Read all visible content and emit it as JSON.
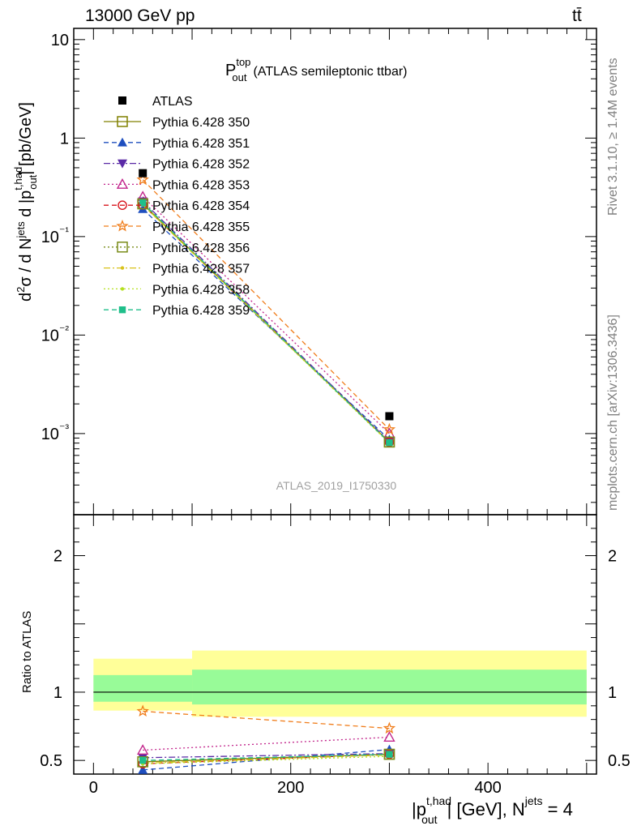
{
  "header": {
    "left": "13000 GeV pp",
    "right": "tt̄"
  },
  "side_labels": {
    "rivet": "Rivet 3.1.10, ≥ 1.4M events",
    "mcplots": "mcplots.cern.ch [arXiv:1306.3436]"
  },
  "chart_data": [
    {
      "type": "line",
      "panel": "main",
      "title_main": "P",
      "title_sup": "top",
      "title_sub": "out",
      "title_rest": "(ATLAS semileptonic ttbar)",
      "watermark": "ATLAS_2019_I1750330",
      "y_axis_label": "d²σ / d N^jets d |p_out^t,had| [pb/GeV]",
      "yscale": "log",
      "ylim": [
        0.00015,
        13
      ],
      "xlim": [
        -20,
        510
      ],
      "y_ticks": [
        "10⁻³",
        "10⁻²",
        "10⁻¹",
        "1",
        "10"
      ],
      "x": [
        50,
        300
      ],
      "data": {
        "name": "ATLAS",
        "x": [
          50,
          300
        ],
        "y": [
          0.44,
          0.0015
        ],
        "color": "#000000"
      },
      "series": [
        {
          "name": "Pythia 6.428 350",
          "color": "#808000",
          "dash": "solid",
          "marker": "square-open",
          "values": [
            0.215,
            0.00082
          ]
        },
        {
          "name": "Pythia 6.428 351",
          "color": "#1f4fbf",
          "dash": "dashed",
          "marker": "triangle-up",
          "values": [
            0.19,
            0.00087
          ]
        },
        {
          "name": "Pythia 6.428 352",
          "color": "#5a2aa6",
          "dash": "dashdot",
          "marker": "triangle-down",
          "values": [
            0.228,
            0.00083
          ]
        },
        {
          "name": "Pythia 6.428 353",
          "color": "#c2268c",
          "dash": "dotted",
          "marker": "triangle-open",
          "values": [
            0.254,
            0.001
          ]
        },
        {
          "name": "Pythia 6.428 354",
          "color": "#d8141c",
          "dash": "dashed",
          "marker": "circle-open",
          "values": [
            0.21,
            0.00082
          ]
        },
        {
          "name": "Pythia 6.428 355",
          "color": "#f07d1b",
          "dash": "dashed",
          "marker": "star-open",
          "values": [
            0.378,
            0.0011
          ]
        },
        {
          "name": "Pythia 6.428 356",
          "color": "#7a8c1a",
          "dash": "dotted",
          "marker": "square-open",
          "values": [
            0.215,
            0.00082
          ]
        },
        {
          "name": "Pythia 6.428 357",
          "color": "#d8c21a",
          "dash": "dashdot",
          "marker": "dot",
          "values": [
            0.21,
            0.00081
          ]
        },
        {
          "name": "Pythia 6.428 358",
          "color": "#b4e01e",
          "dash": "dotted",
          "marker": "dot",
          "values": [
            0.21,
            0.0008
          ]
        },
        {
          "name": "Pythia 6.428 359",
          "color": "#1fbf8a",
          "dash": "dashed",
          "marker": "square-filled",
          "values": [
            0.22,
            0.00081
          ]
        }
      ]
    },
    {
      "type": "line",
      "panel": "ratio",
      "ylabel": "Ratio to ATLAS",
      "xlabel_main": "|p",
      "xlabel_sup": "t,had",
      "xlabel_sub": "out",
      "xlabel_rest": "| [GeV], N",
      "xlabel_sup2": "jets",
      "xlabel_end": " = 4",
      "ylim": [
        0.4,
        2.3
      ],
      "xlim": [
        -20,
        510
      ],
      "y_ticks": [
        0.5,
        1,
        2
      ],
      "y_tick_labels": [
        "0.5",
        "1",
        "2"
      ],
      "x_ticks": [
        0,
        200,
        400
      ],
      "x_tick_labels": [
        "0",
        "200",
        "400"
      ],
      "uncertainty_bins": [
        {
          "x0": 0,
          "x1": 100,
          "yellow": [
            0.865,
            1.245
          ],
          "green": [
            0.93,
            1.125
          ]
        },
        {
          "x0": 100,
          "x1": 500,
          "yellow": [
            0.82,
            1.305
          ],
          "green": [
            0.91,
            1.165
          ]
        }
      ],
      "x": [
        50,
        300
      ],
      "series": [
        {
          "name": "Pythia 6.428 350",
          "values": [
            0.49,
            0.545
          ]
        },
        {
          "name": "Pythia 6.428 351",
          "values": [
            0.43,
            0.58
          ]
        },
        {
          "name": "Pythia 6.428 352",
          "values": [
            0.52,
            0.55
          ]
        },
        {
          "name": "Pythia 6.428 353",
          "values": [
            0.575,
            0.67
          ]
        },
        {
          "name": "Pythia 6.428 354",
          "values": [
            0.475,
            0.545
          ]
        },
        {
          "name": "Pythia 6.428 355",
          "values": [
            0.86,
            0.735
          ]
        },
        {
          "name": "Pythia 6.428 356",
          "values": [
            0.49,
            0.545
          ]
        },
        {
          "name": "Pythia 6.428 357",
          "values": [
            0.48,
            0.54
          ]
        },
        {
          "name": "Pythia 6.428 358",
          "values": [
            0.475,
            0.53
          ]
        },
        {
          "name": "Pythia 6.428 359",
          "values": [
            0.5,
            0.545
          ]
        }
      ]
    }
  ]
}
